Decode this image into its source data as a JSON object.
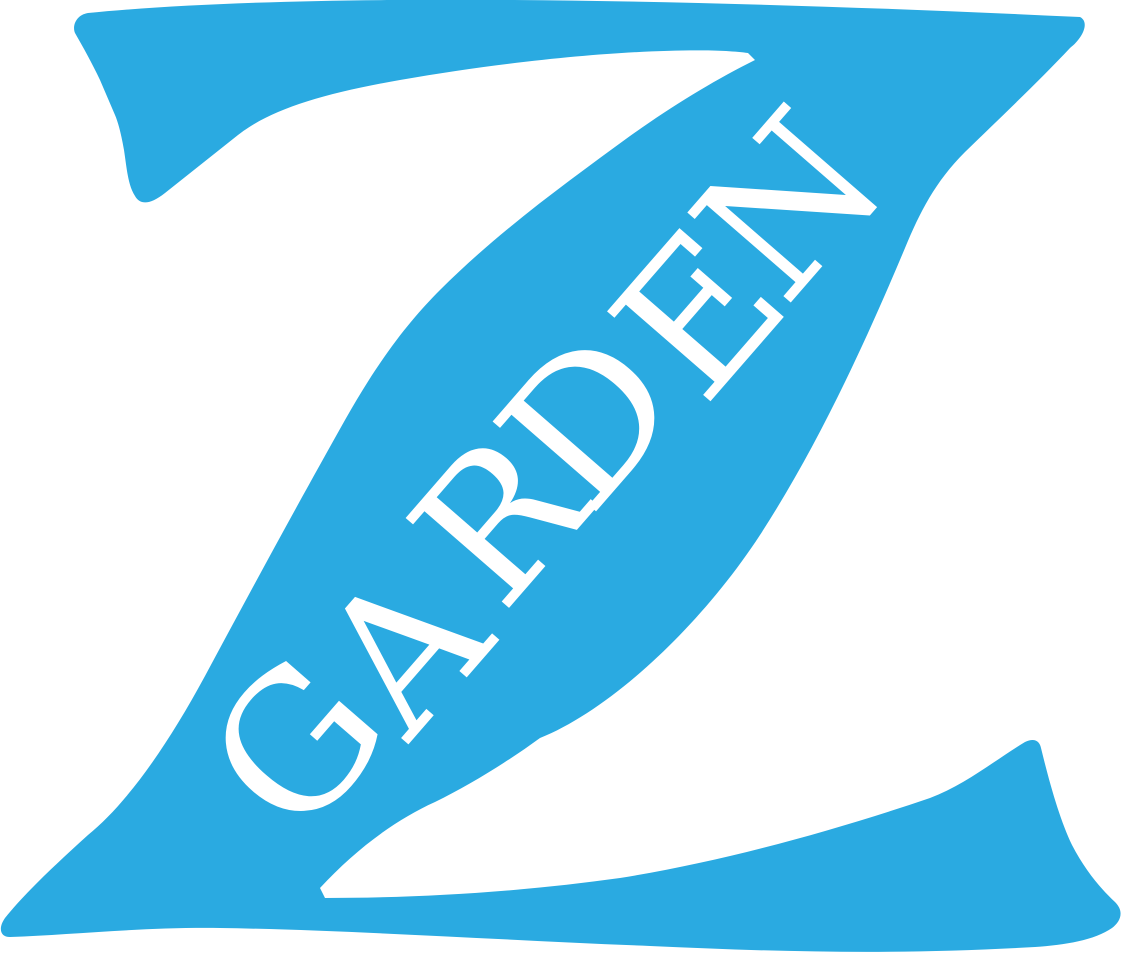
{
  "logo": {
    "name": "Z Garden",
    "icon": "stylized-letter-z-logo",
    "word": "GARDEN",
    "colors": {
      "brand_blue": "#2AAAE1",
      "text": "#FFFFFF",
      "background": "#FFFFFF"
    }
  }
}
